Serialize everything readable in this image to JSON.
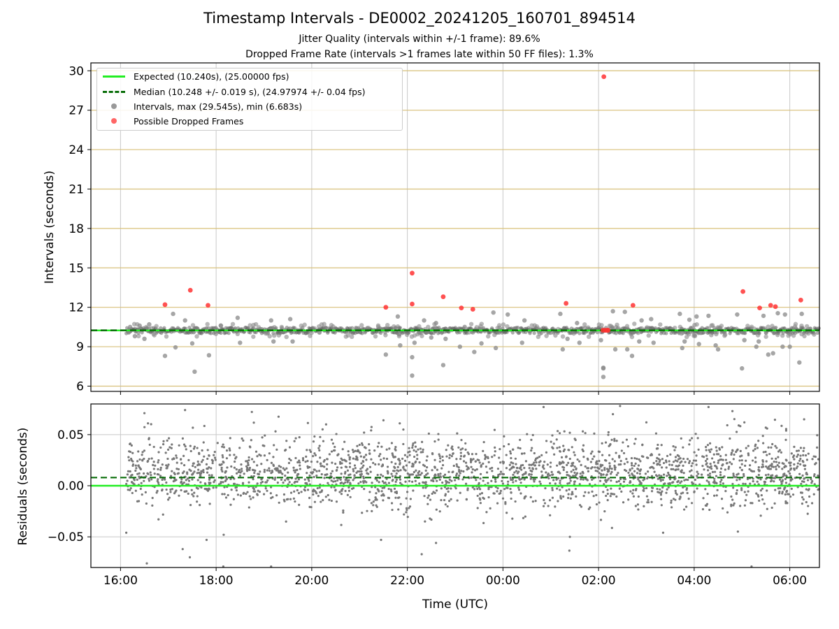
{
  "figure": {
    "title": "Timestamp Intervals - DE0002_20241205_160701_894514",
    "subtitle1": "Jitter Quality (intervals within +/-1 frame): 89.6%",
    "subtitle2": "Dropped Frame Rate (intervals >1 frames late within 50 FF files): 1.3%"
  },
  "legend": {
    "expected": "Expected (10.240s), (25.00000 fps)",
    "median": "Median (10.248 +/- 0.019 s), (24.97974 +/- 0.04 fps)",
    "intervals": "Intervals, max (29.545s), min (6.683s)",
    "dropped": "Possible Dropped Frames"
  },
  "colors": {
    "expected": "#22ee22",
    "median": "#0a6e0a",
    "intervals": "#888888",
    "dropped": "#ff3333",
    "top_grid": "#d8c07a",
    "grid": "#c8c8c8",
    "residual_points": "#777777"
  },
  "chart_data": [
    {
      "type": "scatter",
      "ylabel": "Intervals (seconds)",
      "xlabel": "",
      "x_is_time_hours_from_midnight_prev_day": true,
      "xlim": [
        15.38,
        30.62
      ],
      "ylim": [
        5.6,
        30.6
      ],
      "yticks": [
        "6",
        "9",
        "12",
        "15",
        "18",
        "21",
        "24",
        "27",
        "30"
      ],
      "ytick_values": [
        6,
        9,
        12,
        15,
        18,
        21,
        24,
        27,
        30
      ],
      "expected_line": 10.24,
      "median_line": 10.248,
      "series": [
        {
          "name": "Possible Dropped Frames",
          "x": [
            16.93,
            17.46,
            17.83,
            21.55,
            22.1,
            22.1,
            22.75,
            23.13,
            23.37,
            25.32,
            26.11,
            26.18,
            26.72,
            29.02,
            29.37,
            29.6,
            29.7,
            30.23,
            26.09,
            26.14,
            26.2
          ],
          "y": [
            12.2,
            13.3,
            12.15,
            12.0,
            14.6,
            12.25,
            12.8,
            11.95,
            11.85,
            12.3,
            29.55,
            10.25,
            12.15,
            13.2,
            11.95,
            12.15,
            12.05,
            12.55,
            10.25,
            10.25,
            10.25
          ]
        },
        {
          "name": "Intervals, max (29.545s), min (6.683s)",
          "x": [
            16.2,
            16.3,
            16.4,
            16.5,
            16.6,
            16.93,
            17.1,
            17.15,
            17.35,
            17.5,
            17.55,
            17.85,
            18.1,
            18.45,
            18.5,
            19.15,
            19.2,
            19.55,
            19.6,
            21.55,
            21.8,
            21.85,
            22.1,
            22.1,
            22.15,
            22.35,
            22.5,
            22.6,
            22.75,
            22.8,
            23.1,
            23.2,
            23.4,
            23.55,
            23.8,
            23.85,
            24.1,
            24.4,
            24.45,
            25.2,
            25.25,
            25.35,
            25.55,
            25.6,
            26.05,
            26.1,
            26.1,
            26.1,
            26.3,
            26.35,
            26.55,
            26.6,
            26.7,
            26.85,
            26.9,
            27.1,
            27.15,
            27.7,
            27.75,
            27.8,
            27.9,
            28.05,
            28.1,
            28.3,
            28.45,
            28.5,
            28.9,
            29.0,
            29.05,
            29.3,
            29.35,
            29.45,
            29.55,
            29.65,
            29.75,
            29.85,
            29.9,
            30.0,
            30.2,
            30.25
          ],
          "y": [
            10.5,
            9.8,
            10.6,
            9.6,
            10.7,
            8.3,
            11.5,
            8.95,
            11.0,
            9.25,
            7.1,
            8.35,
            10.6,
            11.2,
            9.3,
            11.0,
            9.4,
            11.1,
            9.4,
            8.4,
            11.3,
            9.1,
            8.2,
            6.8,
            9.3,
            11.0,
            9.7,
            10.8,
            7.6,
            9.6,
            9.0,
            10.5,
            8.6,
            9.25,
            11.6,
            8.9,
            11.45,
            9.3,
            11.0,
            11.5,
            8.8,
            9.6,
            10.8,
            9.3,
            9.5,
            7.4,
            7.35,
            6.7,
            11.7,
            8.8,
            11.65,
            8.8,
            8.3,
            9.4,
            11.0,
            11.1,
            9.3,
            11.5,
            8.9,
            9.4,
            11.05,
            11.3,
            9.2,
            11.35,
            9.1,
            8.8,
            11.45,
            7.35,
            9.5,
            9.0,
            9.4,
            11.35,
            8.4,
            8.5,
            11.55,
            9.0,
            11.45,
            9.0,
            7.8,
            11.5
          ]
        }
      ]
    },
    {
      "type": "scatter",
      "ylabel": "Residuals (seconds)",
      "xlabel": "Time (UTC)",
      "xlim": [
        15.38,
        30.62
      ],
      "ylim": [
        -0.08,
        0.08
      ],
      "yticks": [
        "0.05",
        "0.00",
        "−0.05"
      ],
      "ytick_values": [
        0.05,
        0.0,
        -0.05
      ],
      "xticks": [
        "16:00",
        "18:00",
        "20:00",
        "22:00",
        "00:00",
        "02:00",
        "04:00",
        "06:00"
      ],
      "xtick_values": [
        16,
        18,
        20,
        22,
        24,
        26,
        28,
        30
      ],
      "expected_line": 0.0,
      "median_line": 0.008,
      "point_count": 2400,
      "x_range": [
        16.12,
        30.62
      ],
      "center": 0.012,
      "spread_std": 0.017,
      "notable_points": {
        "x": [
          16.12,
          16.5,
          16.55,
          17.35,
          17.45,
          17.3,
          17.8,
          18.15,
          19.15,
          20.3,
          21.45,
          21.5,
          22.3,
          22.6,
          24.85,
          25.4,
          26.3,
          26.45,
          27.0,
          27.35,
          28.3,
          28.8,
          29.05,
          29.2,
          30.3
        ],
        "y": [
          -0.046,
          0.071,
          -0.076,
          0.074,
          -0.07,
          -0.062,
          -0.053,
          -0.079,
          -0.079,
          0.06,
          -0.053,
          0.064,
          -0.067,
          -0.056,
          0.077,
          -0.05,
          0.07,
          0.078,
          0.062,
          -0.046,
          0.077,
          0.073,
          0.062,
          -0.079,
          0.065
        ]
      }
    }
  ]
}
